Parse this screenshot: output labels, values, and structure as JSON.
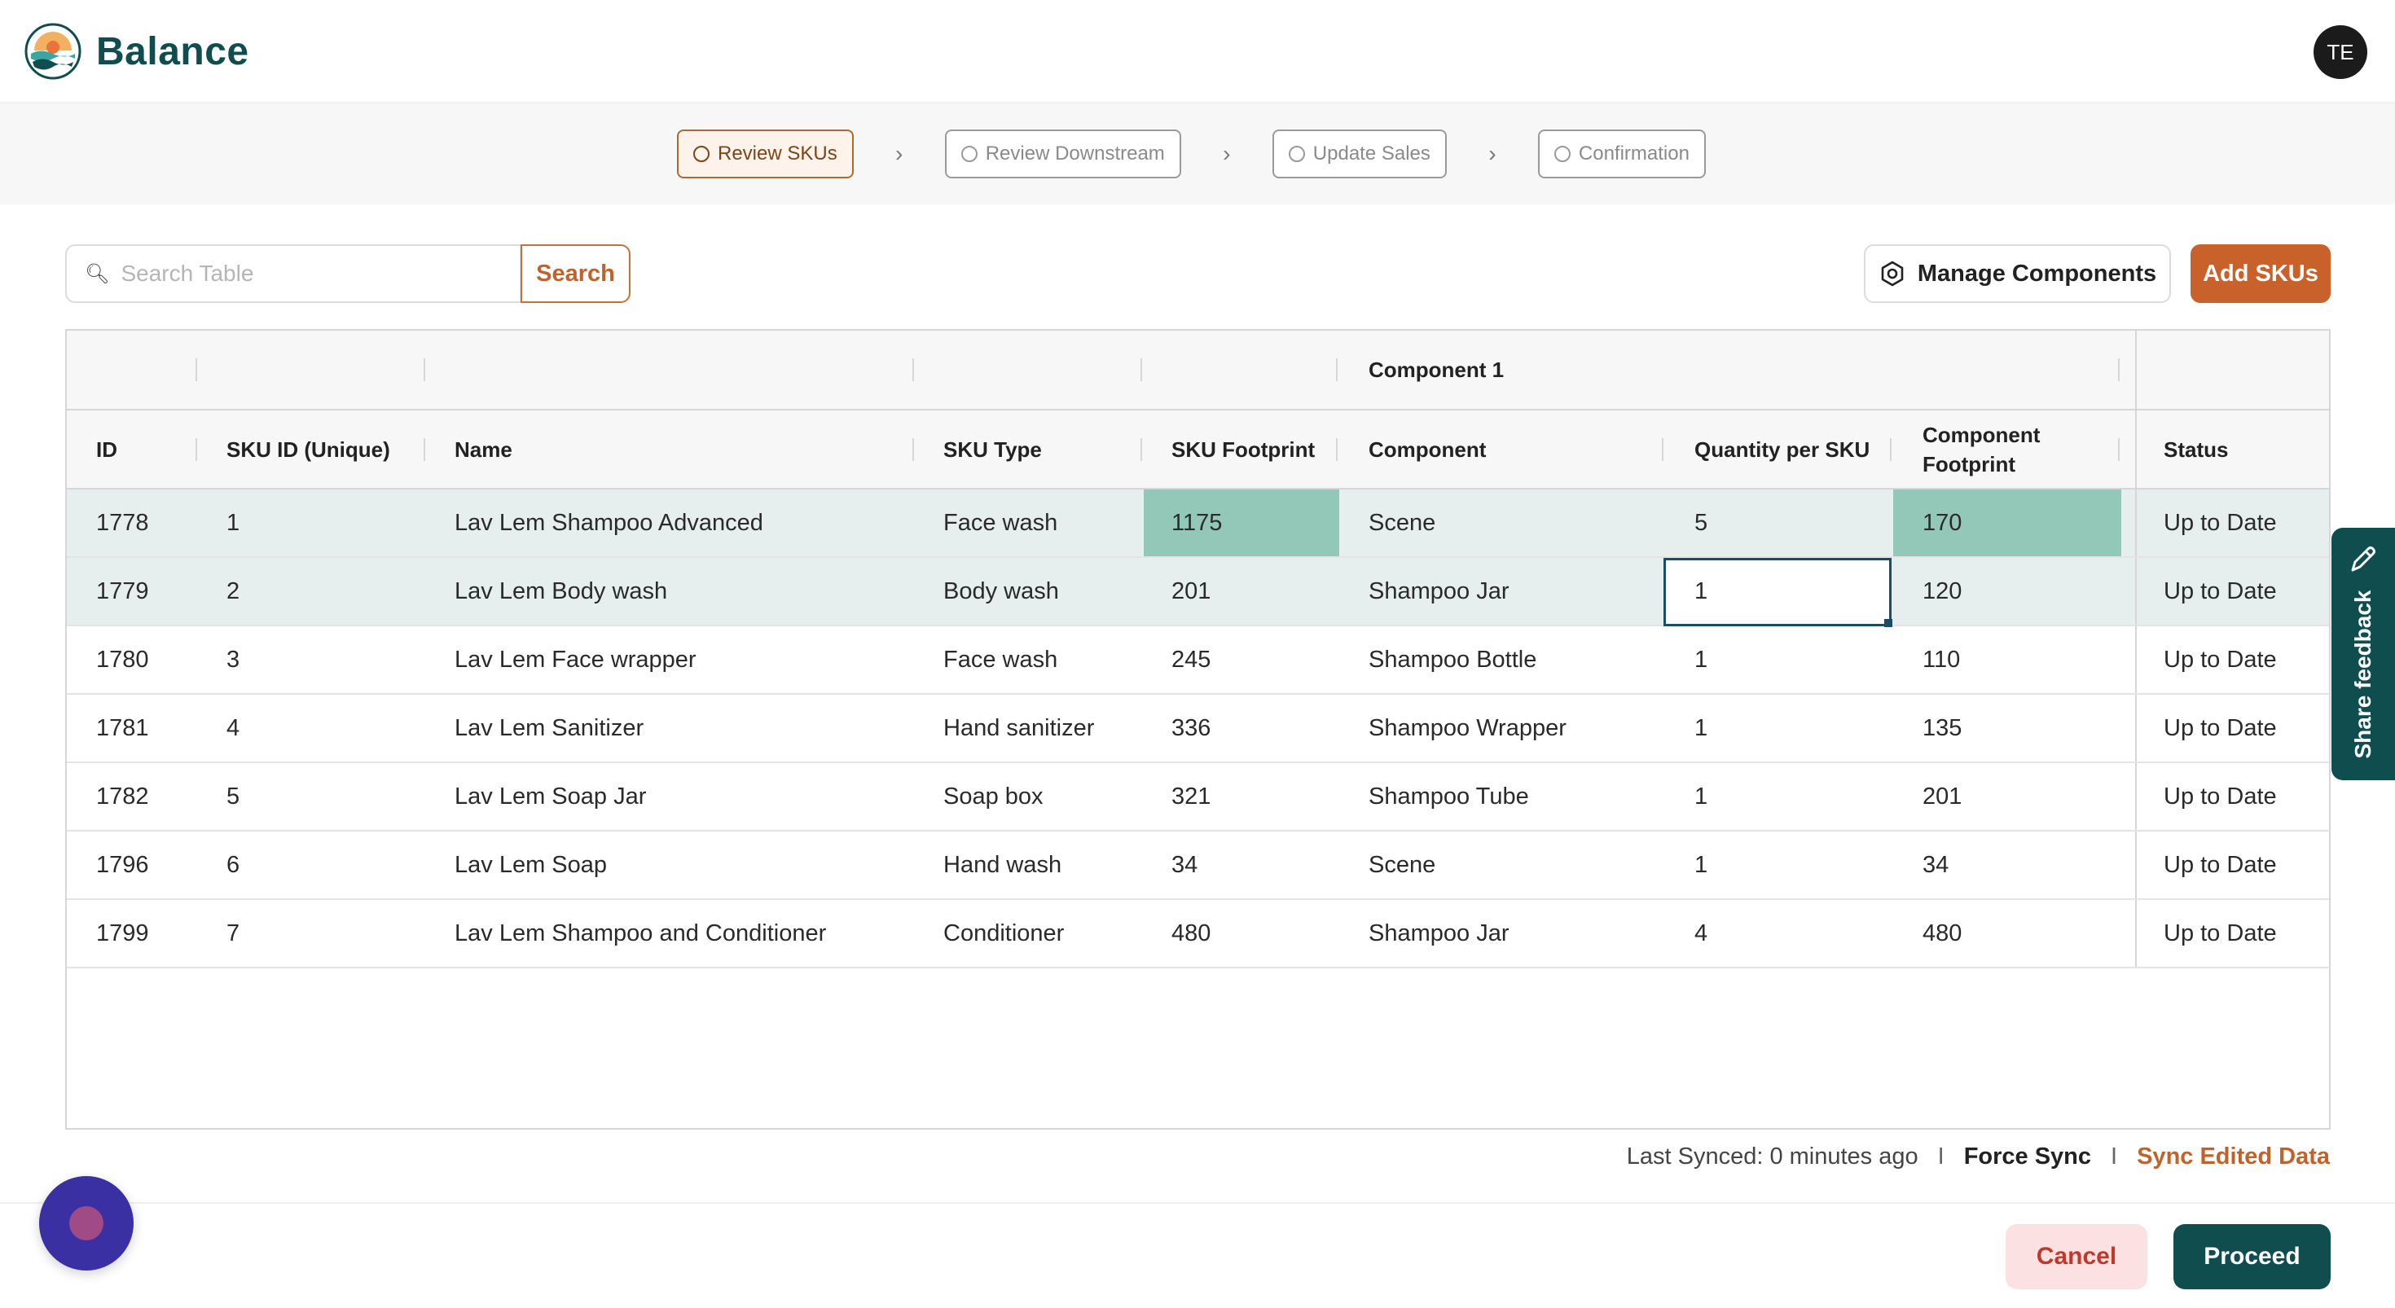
{
  "app": {
    "name": "Balance",
    "avatar_initials": "TE"
  },
  "stepper": {
    "steps": [
      {
        "label": "Review SKUs",
        "active": true
      },
      {
        "label": "Review Downstream",
        "active": false
      },
      {
        "label": "Update Sales",
        "active": false
      },
      {
        "label": "Confirmation",
        "active": false
      }
    ]
  },
  "toolbar": {
    "search_placeholder": "Search Table",
    "search_label": "Search",
    "manage_label": "Manage Components",
    "add_label": "Add SKUs"
  },
  "table": {
    "group_header": "Component 1",
    "columns": {
      "id": "ID",
      "sku_id": "SKU ID (Unique)",
      "name": "Name",
      "sku_type": "SKU Type",
      "sku_footprint": "SKU Footprint",
      "component": "Component",
      "quantity": "Quantity per SKU",
      "component_footprint": "Component Footprint",
      "status": "Status"
    },
    "rows": [
      {
        "id": "1778",
        "sku_id": "1",
        "name": "Lav Lem Shampoo Advanced",
        "sku_type": "Face wash",
        "sku_footprint": "1175",
        "component": "Scene",
        "quantity": "5",
        "component_footprint": "170",
        "status": "Up to Date"
      },
      {
        "id": "1779",
        "sku_id": "2",
        "name": "Lav Lem Body wash",
        "sku_type": "Body wash",
        "sku_footprint": "201",
        "component": "Shampoo Jar",
        "quantity": "1",
        "component_footprint": "120",
        "status": "Up to Date"
      },
      {
        "id": "1780",
        "sku_id": "3",
        "name": "Lav Lem Face wrapper",
        "sku_type": "Face wash",
        "sku_footprint": "245",
        "component": "Shampoo Bottle",
        "quantity": "1",
        "component_footprint": "110",
        "status": "Up to Date"
      },
      {
        "id": "1781",
        "sku_id": "4",
        "name": "Lav Lem Sanitizer",
        "sku_type": "Hand sanitizer",
        "sku_footprint": "336",
        "component": "Shampoo Wrapper",
        "quantity": "1",
        "component_footprint": "135",
        "status": "Up to Date"
      },
      {
        "id": "1782",
        "sku_id": "5",
        "name": "Lav Lem Soap Jar",
        "sku_type": "Soap box",
        "sku_footprint": "321",
        "component": "Shampoo Tube",
        "quantity": "1",
        "component_footprint": "201",
        "status": "Up to Date"
      },
      {
        "id": "1796",
        "sku_id": "6",
        "name": "Lav Lem Soap",
        "sku_type": "Hand wash",
        "sku_footprint": "34",
        "component": "Scene",
        "quantity": "1",
        "component_footprint": "34",
        "status": "Up to Date"
      },
      {
        "id": "1799",
        "sku_id": "7",
        "name": "Lav Lem Shampoo and Conditioner",
        "sku_type": "Conditioner",
        "sku_footprint": "480",
        "component": "Shampoo Jar",
        "quantity": "4",
        "component_footprint": "480",
        "status": "Up to Date"
      }
    ]
  },
  "sync": {
    "last_synced": "Last Synced: 0 minutes ago",
    "separator": "I",
    "force_label": "Force Sync",
    "edited_label": "Sync Edited Data"
  },
  "footer": {
    "cancel_label": "Cancel",
    "proceed_label": "Proceed"
  },
  "feedback": {
    "label": "Share feedback"
  },
  "colors": {
    "brand": "#0f4d4f",
    "accent": "#c9612a",
    "highlight_cell": "#93c8b8",
    "chat_bubble": "#3a2fa3"
  }
}
